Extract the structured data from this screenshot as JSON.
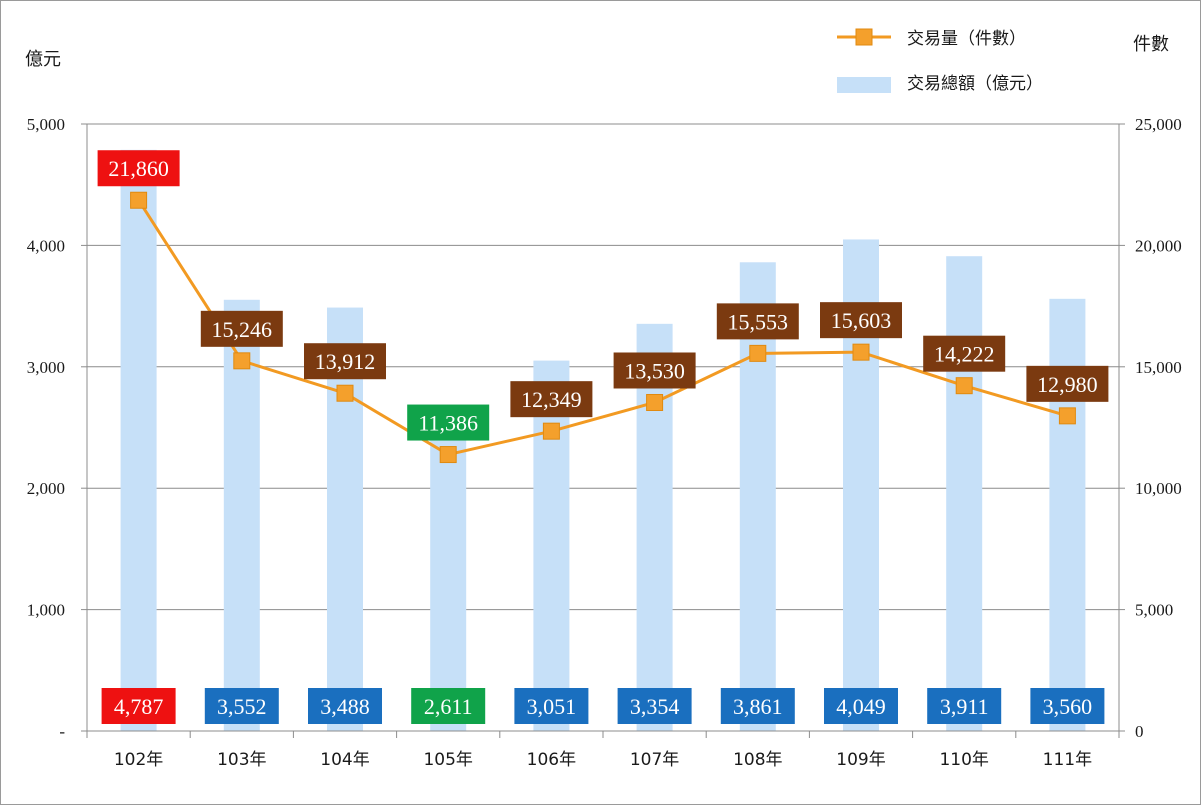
{
  "chart_data": {
    "type": "bar+line",
    "categories": [
      "102年",
      "103年",
      "104年",
      "105年",
      "106年",
      "107年",
      "108年",
      "109年",
      "110年",
      "111年"
    ],
    "series": [
      {
        "name": "交易總額（億元）",
        "type": "bar",
        "axis": "left",
        "values": [
          4787,
          3552,
          3488,
          2611,
          3051,
          3354,
          3861,
          4049,
          3911,
          3560
        ],
        "labels": [
          "4,787",
          "3,552",
          "3,488",
          "2,611",
          "3,051",
          "3,354",
          "3,861",
          "4,049",
          "3,911",
          "3,560"
        ]
      },
      {
        "name": "交易量（件數）",
        "type": "line",
        "axis": "right",
        "values": [
          21860,
          15246,
          13912,
          11386,
          12349,
          13530,
          15553,
          15603,
          14222,
          12980
        ],
        "labels": [
          "21,860",
          "15,246",
          "13,912",
          "11,386",
          "12,349",
          "13,530",
          "15,553",
          "15,603",
          "14,222",
          "12,980"
        ]
      }
    ],
    "left_axis": {
      "unit_label": "億元",
      "range": [
        0,
        5000
      ],
      "ticks": [
        0,
        1000,
        2000,
        3000,
        4000,
        5000
      ],
      "tick_labels": [
        "-",
        "1,000",
        "2,000",
        "3,000",
        "4,000",
        "5,000"
      ]
    },
    "right_axis": {
      "unit_label": "件數",
      "range": [
        0,
        25000
      ],
      "ticks": [
        0,
        5000,
        10000,
        15000,
        20000,
        25000
      ],
      "tick_labels": [
        "0",
        "5,000",
        "10,000",
        "15,000",
        "20,000",
        "25,000"
      ]
    },
    "legend": {
      "position": "top-right",
      "line_entry": "交易量（件數）",
      "bar_entry": "交易總額（億元）"
    },
    "label_styles": {
      "bar_label_colors": [
        "#ee1111",
        "#1a6fbf",
        "#1a6fbf",
        "#10a34a",
        "#1a6fbf",
        "#1a6fbf",
        "#1a6fbf",
        "#1a6fbf",
        "#1a6fbf",
        "#1a6fbf"
      ],
      "line_label_colors": [
        "#ee1111",
        "#7b3a10",
        "#7b3a10",
        "#10a34a",
        "#7b3a10",
        "#7b3a10",
        "#7b3a10",
        "#7b3a10",
        "#7b3a10",
        "#7b3a10"
      ]
    },
    "colors": {
      "bar": "#c6e0f8",
      "line": "#f29a22",
      "marker": "#f4a02c",
      "grid": "#8c8c8c",
      "axis": "#8c8c8c",
      "text": "#1a1a1a"
    },
    "grid": true
  }
}
